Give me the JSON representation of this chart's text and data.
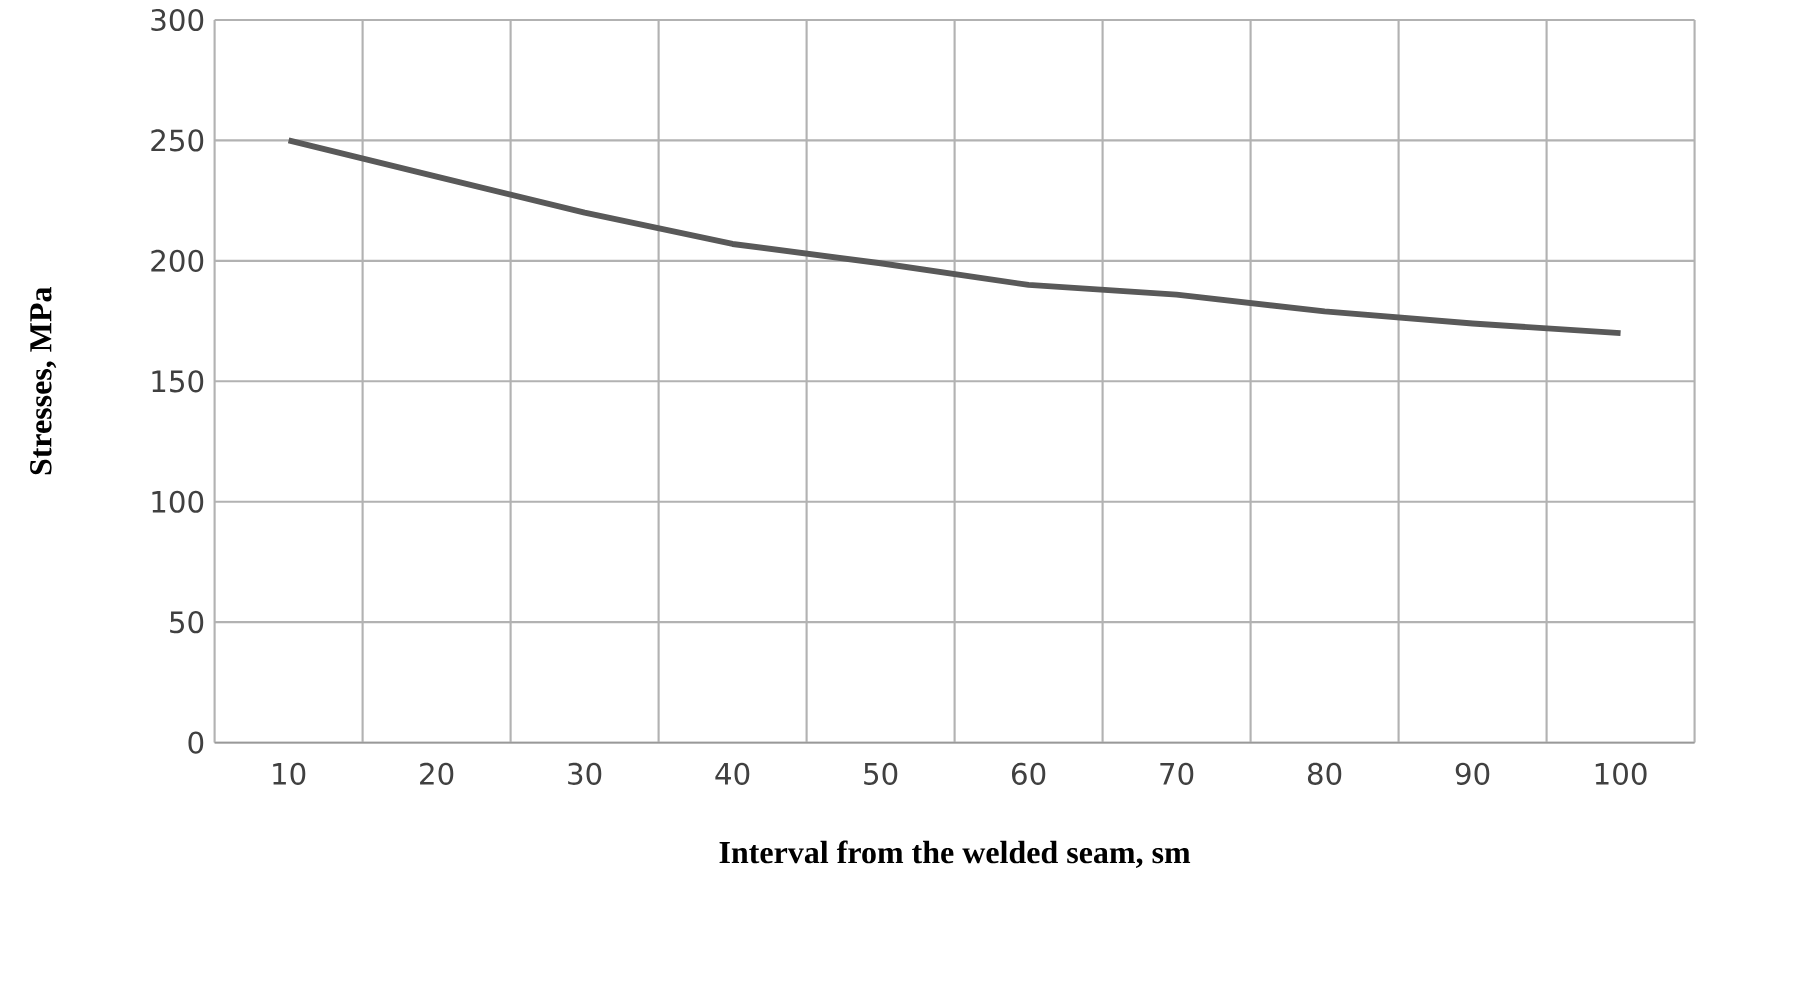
{
  "chart_data": {
    "type": "line",
    "xlabel": "Interval from the welded seam, sm",
    "ylabel": "Stresses, MPa",
    "categories": [
      "10",
      "20",
      "30",
      "40",
      "50",
      "60",
      "70",
      "80",
      "90",
      "100"
    ],
    "series": [
      {
        "color": "#595959",
        "values": [
          250,
          235,
          220,
          207,
          199,
          190,
          186,
          179,
          174,
          170
        ]
      }
    ],
    "ylim": [
      0,
      300
    ],
    "yticks": [
      0,
      50,
      100,
      150,
      200,
      250,
      300
    ],
    "grid": true,
    "marker": "none",
    "line_style": "solid"
  }
}
